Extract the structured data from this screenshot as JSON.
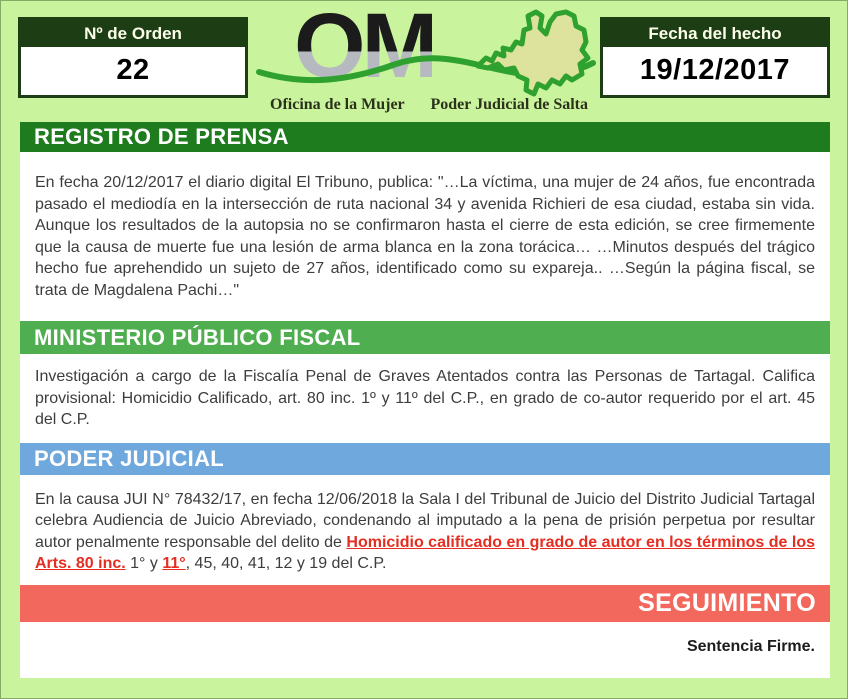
{
  "header": {
    "order_label": "Nº de Orden",
    "order_value": "22",
    "date_label": "Fecha del hecho",
    "date_value": "19/12/2017"
  },
  "logo": {
    "monogram": "OM",
    "caption_left": "Oficina de la Mujer",
    "caption_right": "Poder Judicial de Salta"
  },
  "sections": {
    "prensa": {
      "heading": "REGISTRO DE PRENSA",
      "body": "En fecha 20/12/2017 el diario digital El Tribuno, publica: \"…La víctima, una mujer de 24 años, fue encontrada pasado el mediodía en la intersección de ruta nacional 34 y avenida Richieri de esa ciudad, estaba sin vida. Aunque los resultados de la autopsia no se confirmaron hasta el cierre de esta edición, se cree firmemente que la causa de muerte fue una lesión de arma blanca en la zona torácica… …Minutos después del trágico hecho fue aprehendido un sujeto de 27 años, identificado como su expareja.. …Según la página fiscal, se trata de Magdalena Pachi…\""
    },
    "fiscal": {
      "heading": "MINISTERIO PÚBLICO FISCAL",
      "body": "Investigación a cargo de la Fiscalía Penal de Graves Atentados contra las Personas de Tartagal. Califica provisional: Homicidio Calificado, art. 80 inc. 1º y 11º del C.P., en grado de co-autor requerido por el art. 45 del C.P."
    },
    "judicial": {
      "heading": "PODER JUDICIAL",
      "segments": [
        {
          "text": "En la causa JUI N° 78432/17, en fecha 12/06/2018 la Sala I del Tribunal de Juicio del Distrito Judicial Tartagal celebra Audiencia de Juicio Abreviado, condenando al imputado a la pena de prisión perpetua por resultar autor penalmente responsable del delito de ",
          "style": "normal"
        },
        {
          "text": "Homicidio calificado en grado de autor en los términos de los Arts. 80 inc.",
          "style": "red-underline"
        },
        {
          "text": " 1° y ",
          "style": "normal"
        },
        {
          "text": "11°",
          "style": "red-underline"
        },
        {
          "text": ", 45, 40, 41, 12 y 19 del C.P.",
          "style": "normal"
        }
      ]
    },
    "seguimiento": {
      "heading": "SEGUIMIENTO",
      "status": "Sentencia Firme."
    }
  },
  "colors": {
    "page_bg": "#c9f49d",
    "dark_green": "#1d3d15",
    "band_prensa": "#1e7c1e",
    "band_fiscal": "#4fae4f",
    "band_judicial": "#6fa8dc",
    "band_seguimiento": "#f2685c",
    "red_text": "#e52d20"
  }
}
